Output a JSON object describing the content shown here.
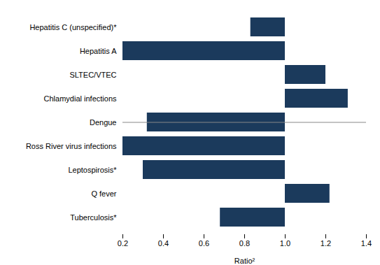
{
  "chart_data": {
    "type": "bar",
    "orientation": "horizontal",
    "categories": [
      "Tuberculosis*",
      "Q fever",
      "Leptospirosis*",
      "Ross River virus infections",
      "Dengue",
      "Chlamydial infections",
      "SLTEC/VTEC",
      "Hepatitis A",
      "Hepatitis C (unspecified)*"
    ],
    "low": [
      0.68,
      1.0,
      0.3,
      0.2,
      0.32,
      1.0,
      1.0,
      0.2,
      0.83
    ],
    "high": [
      1.0,
      1.22,
      1.0,
      1.0,
      1.0,
      1.31,
      1.2,
      1.0,
      1.0
    ],
    "color": "#1b3a5c",
    "xlabel": "Ratio²",
    "xlim": [
      0.2,
      1.4
    ],
    "xticks": [
      0.2,
      0.4,
      0.6,
      0.8,
      {
        "value": 1.0,
        "label": "1.0"
      },
      1.2,
      1.4
    ],
    "grid": false
  }
}
